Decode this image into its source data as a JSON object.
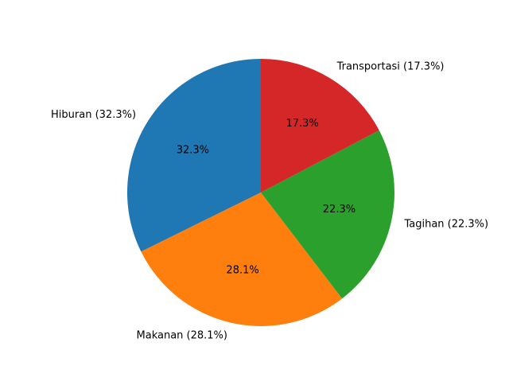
{
  "chart_data": {
    "type": "pie",
    "title": "",
    "slices": [
      {
        "label": "Hiburan",
        "value": 32.3,
        "percent_text": "32.3%",
        "outer_label": "Hiburan (32.3%)",
        "color": "#1f77b4"
      },
      {
        "label": "Makanan",
        "value": 28.1,
        "percent_text": "28.1%",
        "outer_label": "Makanan (28.1%)",
        "color": "#ff7f0e"
      },
      {
        "label": "Tagihan",
        "value": 22.3,
        "percent_text": "22.3%",
        "outer_label": "Tagihan (22.3%)",
        "color": "#2ca02c"
      },
      {
        "label": "Transportasi",
        "value": 17.3,
        "percent_text": "17.3%",
        "outer_label": "Transportasi (17.3%)",
        "color": "#d62728"
      }
    ],
    "start_angle_deg": 90,
    "direction": "counterclockwise",
    "legend": "none"
  }
}
